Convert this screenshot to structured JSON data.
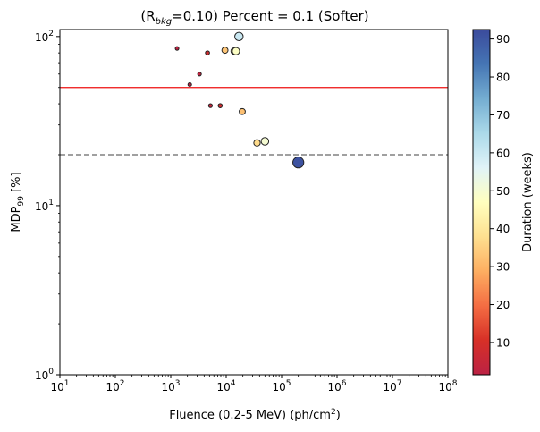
{
  "chart_data": {
    "type": "scatter",
    "title_prefix": "(R",
    "title_sub": "bkg",
    "title_suffix": "=0.10) Percent = 0.1 (Softer)",
    "xlabel": "Fluence (0.2-5 MeV) (ph/cm",
    "xlabel_sup": "2",
    "xlabel_end": ")",
    "ylabel": "MDP",
    "ylabel_sub": "99",
    "ylabel_end": " [%]",
    "xscale": "log",
    "yscale": "log",
    "xlim": [
      10,
      100000000
    ],
    "ylim": [
      1,
      110
    ],
    "x_ticks": [
      {
        "base": "10",
        "exp": "1",
        "value": 10
      },
      {
        "base": "10",
        "exp": "2",
        "value": 100
      },
      {
        "base": "10",
        "exp": "3",
        "value": 1000
      },
      {
        "base": "10",
        "exp": "4",
        "value": 10000
      },
      {
        "base": "10",
        "exp": "5",
        "value": 100000
      },
      {
        "base": "10",
        "exp": "6",
        "value": 1000000
      },
      {
        "base": "10",
        "exp": "7",
        "value": 10000000
      },
      {
        "base": "10",
        "exp": "8",
        "value": 100000000
      }
    ],
    "y_ticks": [
      {
        "base": "10",
        "exp": "0",
        "value": 1
      },
      {
        "base": "10",
        "exp": "1",
        "value": 10
      },
      {
        "base": "10",
        "exp": "2",
        "value": 100
      }
    ],
    "reference_lines": [
      {
        "y": 50,
        "style": "solid",
        "color": "#ee1111"
      },
      {
        "y": 20,
        "style": "dashed",
        "color": "#808080"
      }
    ],
    "points": [
      {
        "x": 1300,
        "y": 85,
        "duration": 2
      },
      {
        "x": 2200,
        "y": 52,
        "duration": 2
      },
      {
        "x": 3300,
        "y": 60,
        "duration": 3
      },
      {
        "x": 5200,
        "y": 39,
        "duration": 4
      },
      {
        "x": 4600,
        "y": 80,
        "duration": 8
      },
      {
        "x": 7800,
        "y": 39,
        "duration": 8
      },
      {
        "x": 9500,
        "y": 83,
        "duration": 33
      },
      {
        "x": 14000,
        "y": 82,
        "duration": 40
      },
      {
        "x": 15000,
        "y": 82,
        "duration": 48
      },
      {
        "x": 17000,
        "y": 100,
        "duration": 60
      },
      {
        "x": 19500,
        "y": 36,
        "duration": 32
      },
      {
        "x": 36000,
        "y": 23.5,
        "duration": 37
      },
      {
        "x": 50000,
        "y": 24,
        "duration": 50
      },
      {
        "x": 200000,
        "y": 18,
        "duration": 91
      }
    ],
    "colorbar": {
      "label": "Duration (weeks)",
      "min": 1.5,
      "max": 92.5,
      "ticks": [
        10,
        20,
        30,
        40,
        50,
        60,
        70,
        80,
        90
      ],
      "tick_labels": [
        "10",
        "20",
        "30",
        "40",
        "50",
        "60",
        "70",
        "80",
        "90"
      ],
      "colormap": [
        "#bb2244",
        "#d73027",
        "#f46d43",
        "#fdae61",
        "#fee090",
        "#ffffbf",
        "#e0f3f8",
        "#abd9e9",
        "#74add1",
        "#4575b4",
        "#3b4b9c"
      ]
    }
  }
}
